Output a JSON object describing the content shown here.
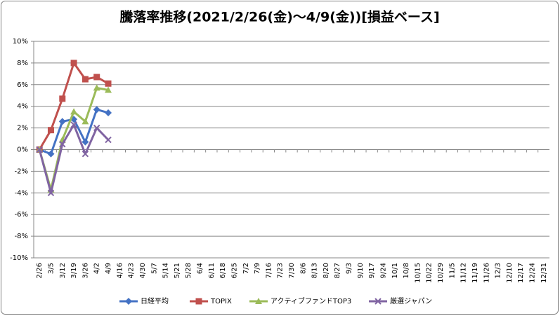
{
  "chart_data": {
    "type": "line",
    "title": "騰落率推移(2021/2/26(金)〜4/9(金))[損益ベース]",
    "categories": [
      "2/26",
      "3/5",
      "3/12",
      "3/19",
      "3/26",
      "4/2",
      "4/9",
      "4/16",
      "4/23",
      "4/30",
      "5/7",
      "5/14",
      "5/21",
      "5/28",
      "6/4",
      "6/11",
      "6/18",
      "6/25",
      "7/2",
      "7/9",
      "7/16",
      "7/23",
      "7/30",
      "8/6",
      "8/13",
      "8/20",
      "8/27",
      "9/3",
      "9/10",
      "9/17",
      "9/24",
      "10/1",
      "10/8",
      "10/15",
      "10/22",
      "10/29",
      "11/5",
      "11/12",
      "11/19",
      "11/26",
      "12/3",
      "12/10",
      "12/17",
      "12/24",
      "12/31"
    ],
    "series": [
      {
        "name": "日経平均",
        "color": "#4472c4",
        "marker": "diamond",
        "values": [
          0,
          -0.4,
          2.6,
          2.8,
          0.7,
          3.7,
          3.4,
          null,
          null,
          null,
          null,
          null,
          null,
          null,
          null,
          null,
          null,
          null,
          null,
          null,
          null,
          null,
          null,
          null,
          null,
          null,
          null,
          null,
          null,
          null,
          null,
          null,
          null,
          null,
          null,
          null,
          null,
          null,
          null,
          null,
          null,
          null,
          null,
          null,
          null
        ]
      },
      {
        "name": "TOPIX",
        "color": "#c0504d",
        "marker": "square",
        "values": [
          0,
          1.8,
          4.7,
          8.0,
          6.5,
          6.7,
          6.1,
          null,
          null,
          null,
          null,
          null,
          null,
          null,
          null,
          null,
          null,
          null,
          null,
          null,
          null,
          null,
          null,
          null,
          null,
          null,
          null,
          null,
          null,
          null,
          null,
          null,
          null,
          null,
          null,
          null,
          null,
          null,
          null,
          null,
          null,
          null,
          null,
          null,
          null
        ]
      },
      {
        "name": "アクティブファンドTOP3",
        "color": "#9bbb59",
        "marker": "triangle",
        "values": [
          0,
          -3.7,
          0.9,
          3.5,
          2.6,
          5.7,
          5.5,
          null,
          null,
          null,
          null,
          null,
          null,
          null,
          null,
          null,
          null,
          null,
          null,
          null,
          null,
          null,
          null,
          null,
          null,
          null,
          null,
          null,
          null,
          null,
          null,
          null,
          null,
          null,
          null,
          null,
          null,
          null,
          null,
          null,
          null,
          null,
          null,
          null,
          null
        ]
      },
      {
        "name": "厳選ジャパン",
        "color": "#8064a2",
        "marker": "x",
        "values": [
          0,
          -4.0,
          0.5,
          2.3,
          -0.4,
          2.0,
          0.9,
          null,
          null,
          null,
          null,
          null,
          null,
          null,
          null,
          null,
          null,
          null,
          null,
          null,
          null,
          null,
          null,
          null,
          null,
          null,
          null,
          null,
          null,
          null,
          null,
          null,
          null,
          null,
          null,
          null,
          null,
          null,
          null,
          null,
          null,
          null,
          null,
          null,
          null
        ]
      }
    ],
    "ylim": [
      -10,
      10
    ],
    "yticks": [
      {
        "value": -10,
        "label": "-10%"
      },
      {
        "value": -8,
        "label": "-8%"
      },
      {
        "value": -6,
        "label": "-6%"
      },
      {
        "value": -4,
        "label": "-4%"
      },
      {
        "value": -2,
        "label": "-2%"
      },
      {
        "value": 0,
        "label": "0%"
      },
      {
        "value": 2,
        "label": "2%"
      },
      {
        "value": 4,
        "label": "4%"
      },
      {
        "value": 6,
        "label": "6%"
      },
      {
        "value": 8,
        "label": "8%"
      },
      {
        "value": 10,
        "label": "10%"
      }
    ],
    "grid": true,
    "legend": "bottom"
  }
}
